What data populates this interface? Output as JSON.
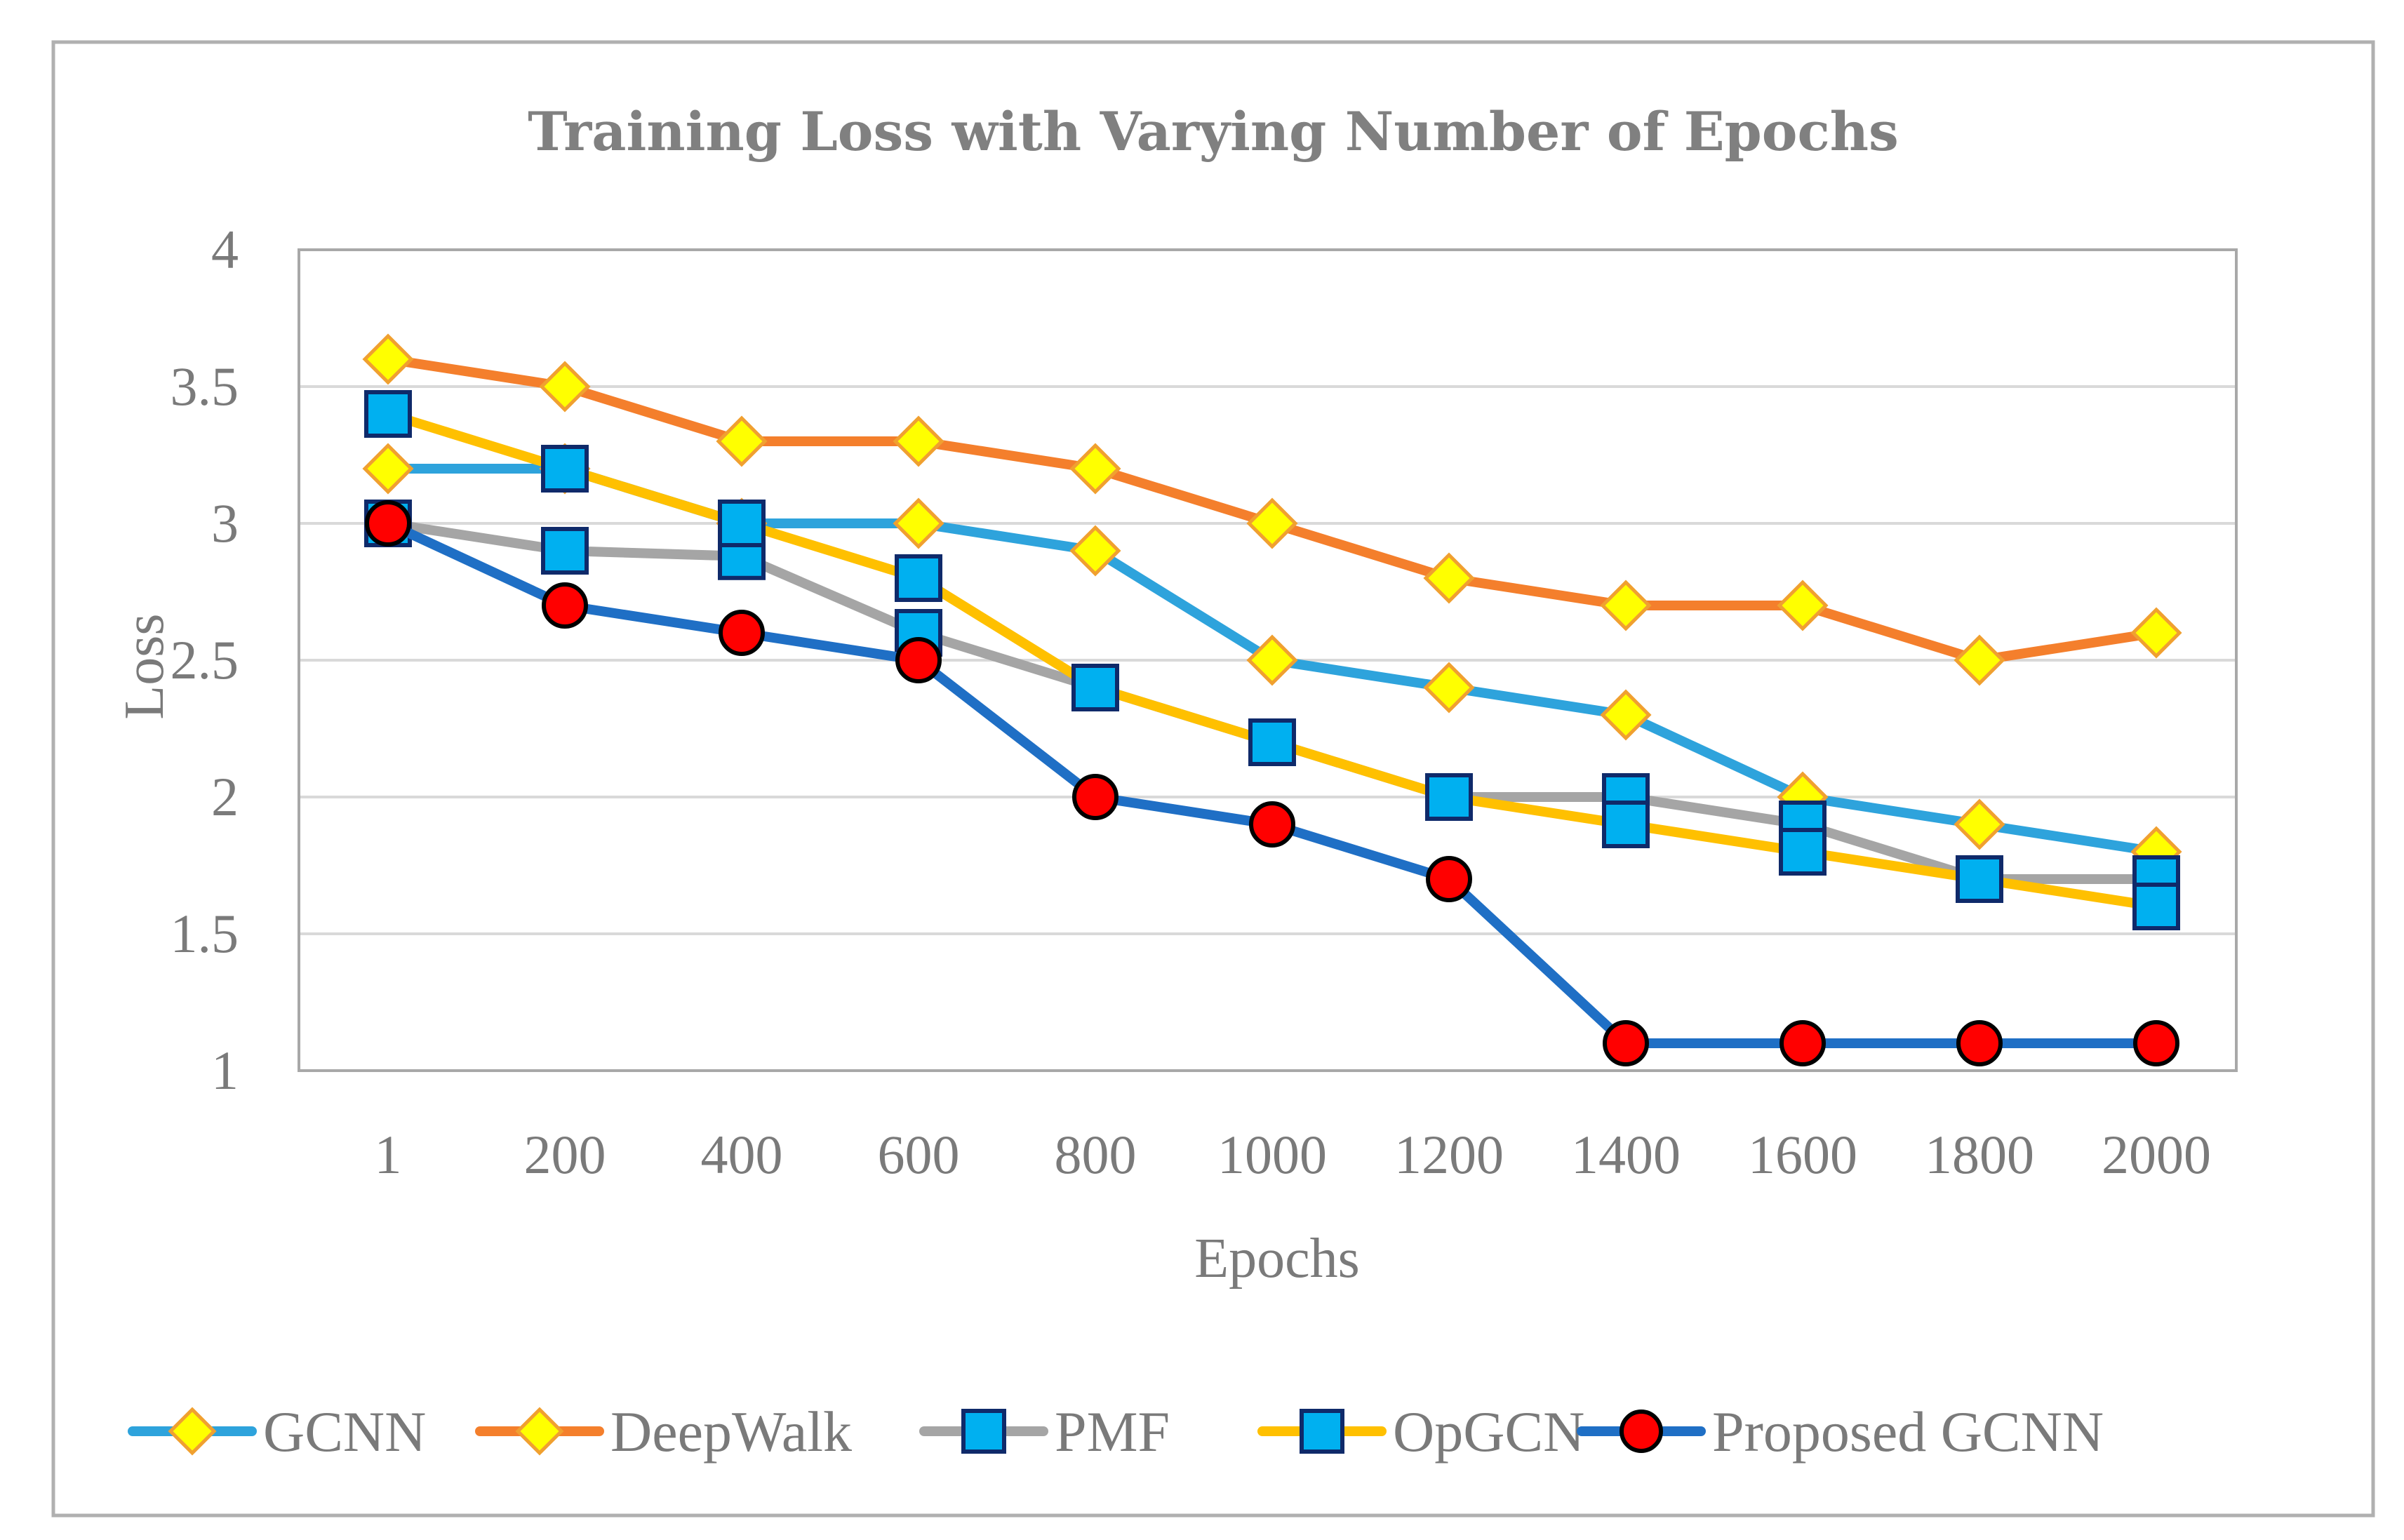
{
  "chart_data": {
    "type": "line",
    "title": "Training Loss with Varying Number of Epochs",
    "xlabel": "Epochs",
    "ylabel": "Loss",
    "categories": [
      "1",
      "200",
      "400",
      "600",
      "800",
      "1000",
      "1200",
      "1400",
      "1600",
      "1800",
      "2000"
    ],
    "ylim": [
      1,
      4
    ],
    "yticks": [
      "1",
      "1.5",
      "2",
      "2.5",
      "3",
      "3.5",
      "4"
    ],
    "grid": true,
    "legend_position": "bottom",
    "series": [
      {
        "name": "GCNN",
        "color": "#2ea3dc",
        "marker": "diamond",
        "marker_fill": "#ffff00",
        "values": [
          3.2,
          3.2,
          3.0,
          3.0,
          2.9,
          2.5,
          2.4,
          2.3,
          2.0,
          1.9,
          1.8
        ]
      },
      {
        "name": "DeepWalk",
        "color": "#f47f2c",
        "marker": "diamond",
        "marker_fill": "#ffff00",
        "values": [
          3.6,
          3.5,
          3.3,
          3.3,
          3.2,
          3.0,
          2.8,
          2.7,
          2.7,
          2.5,
          2.6
        ]
      },
      {
        "name": "PMF",
        "color": "#a5a5a5",
        "marker": "square",
        "marker_fill": "#00b0f0",
        "values": [
          3.0,
          2.9,
          2.88,
          2.6,
          2.4,
          2.2,
          2.0,
          2.0,
          1.9,
          1.7,
          1.7
        ]
      },
      {
        "name": "OpGCN",
        "color": "#ffc000",
        "marker": "square",
        "marker_fill": "#00b0f0",
        "values": [
          3.4,
          3.2,
          3.0,
          2.8,
          2.4,
          2.2,
          2.0,
          1.9,
          1.8,
          1.7,
          1.6
        ]
      },
      {
        "name": "Proposed GCNN",
        "color": "#1f6fc5",
        "marker": "circle",
        "marker_fill": "#ff0000",
        "values": [
          3.0,
          2.7,
          2.6,
          2.5,
          2.0,
          1.9,
          1.7,
          1.1,
          1.1,
          1.1,
          1.1
        ]
      }
    ]
  }
}
